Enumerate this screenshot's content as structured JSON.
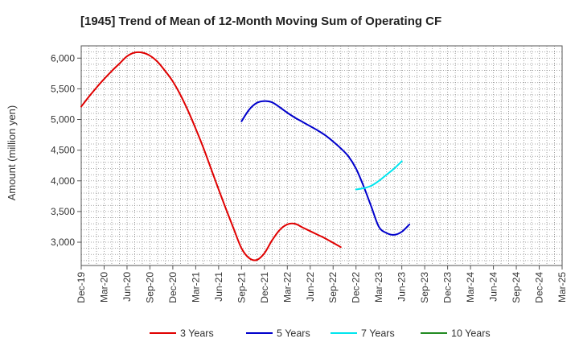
{
  "chart_data": {
    "type": "line",
    "title": "[1945]  Trend of Mean of 12-Month Moving Sum of Operating CF",
    "xlabel": "",
    "ylabel": "Amount (million yen)",
    "ylim": [
      2620,
      6200
    ],
    "yticks": [
      3000,
      3500,
      4000,
      4500,
      5000,
      5500,
      6000
    ],
    "ytick_labels": [
      "3,000",
      "3,500",
      "4,000",
      "4,500",
      "5,000",
      "5,500",
      "6,000"
    ],
    "xtick_labels": [
      "Dec-19",
      "Mar-20",
      "Jun-20",
      "Sep-20",
      "Dec-20",
      "Mar-21",
      "Jun-21",
      "Sep-21",
      "Dec-21",
      "Mar-22",
      "Jun-22",
      "Sep-22",
      "Dec-22",
      "Mar-23",
      "Jun-23",
      "Sep-23",
      "Dec-23",
      "Mar-24",
      "Jun-24",
      "Sep-24",
      "Dec-24",
      "Mar-25"
    ],
    "grid": true,
    "legend_position": "bottom",
    "series": [
      {
        "name": "3 Years",
        "color": "#e00000",
        "points": [
          [
            0,
            5210
          ],
          [
            1,
            5370
          ],
          [
            2,
            5520
          ],
          [
            3,
            5660
          ],
          [
            4,
            5790
          ],
          [
            5,
            5910
          ],
          [
            6,
            6030
          ],
          [
            7,
            6090
          ],
          [
            8,
            6090
          ],
          [
            9,
            6040
          ],
          [
            10,
            5940
          ],
          [
            11,
            5790
          ],
          [
            12,
            5620
          ],
          [
            13,
            5400
          ],
          [
            14,
            5140
          ],
          [
            15,
            4850
          ],
          [
            16,
            4540
          ],
          [
            17,
            4200
          ],
          [
            18,
            3860
          ],
          [
            19,
            3530
          ],
          [
            20,
            3210
          ],
          [
            21,
            2900
          ],
          [
            22,
            2740
          ],
          [
            23,
            2710
          ],
          [
            24,
            2820
          ],
          [
            25,
            3030
          ],
          [
            26,
            3200
          ],
          [
            27,
            3290
          ],
          [
            28,
            3300
          ],
          [
            29,
            3240
          ],
          [
            30,
            3180
          ],
          [
            31,
            3120
          ],
          [
            32,
            3060
          ],
          [
            33,
            2990
          ],
          [
            34,
            2920
          ]
        ]
      },
      {
        "name": "5 Years",
        "color": "#0000cc",
        "points": [
          [
            21,
            4970
          ],
          [
            22,
            5160
          ],
          [
            23,
            5270
          ],
          [
            24,
            5300
          ],
          [
            25,
            5280
          ],
          [
            26,
            5200
          ],
          [
            27,
            5110
          ],
          [
            28,
            5030
          ],
          [
            29,
            4960
          ],
          [
            30,
            4890
          ],
          [
            31,
            4820
          ],
          [
            32,
            4740
          ],
          [
            33,
            4640
          ],
          [
            34,
            4530
          ],
          [
            35,
            4400
          ],
          [
            36,
            4200
          ],
          [
            37,
            3910
          ],
          [
            38,
            3580
          ],
          [
            39,
            3250
          ],
          [
            40,
            3150
          ],
          [
            41,
            3120
          ],
          [
            42,
            3170
          ],
          [
            43,
            3290
          ]
        ]
      },
      {
        "name": "7 Years",
        "color": "#00e5ee",
        "points": [
          [
            36,
            3860
          ],
          [
            37,
            3880
          ],
          [
            38,
            3920
          ],
          [
            39,
            4000
          ],
          [
            40,
            4100
          ],
          [
            41,
            4200
          ],
          [
            42,
            4320
          ]
        ]
      },
      {
        "name": "10 Years",
        "color": "#228b22",
        "points": []
      }
    ]
  }
}
